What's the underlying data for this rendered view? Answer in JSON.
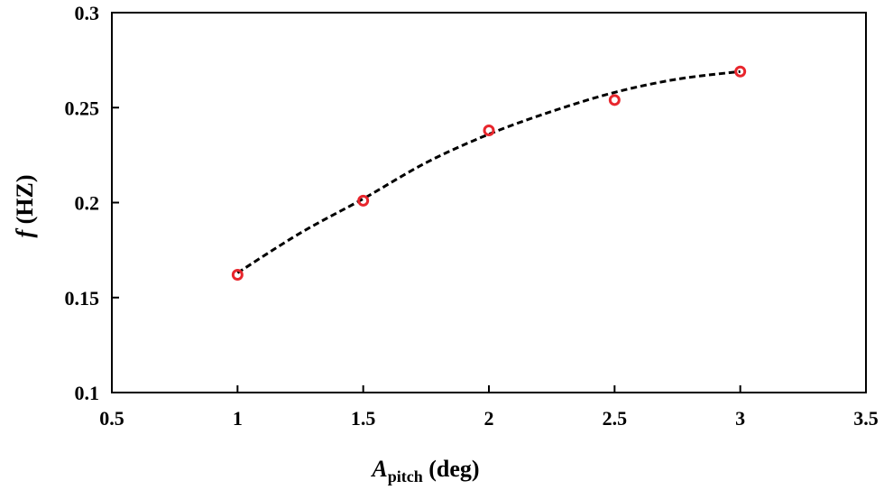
{
  "chart_data": {
    "type": "scatter",
    "xlabel": {
      "symbol": "A",
      "subscript": "pitch",
      "unit": " (deg)"
    },
    "ylabel": {
      "symbol": "f",
      "unit": " (HZ)"
    },
    "xlim": [
      0.5,
      3.5
    ],
    "ylim": [
      0.1,
      0.3
    ],
    "xticks": [
      "0.5",
      "1",
      "1.5",
      "2",
      "2.5",
      "3",
      "3.5"
    ],
    "yticks": [
      "0.1",
      "0.15",
      "0.2",
      "0.25",
      "0.3"
    ],
    "grid": false,
    "series": [
      {
        "type": "scatter",
        "marker": "open-circle",
        "color": "#e8262d",
        "x": [
          1,
          1.5,
          2,
          2.5,
          3
        ],
        "y": [
          0.162,
          0.201,
          0.238,
          0.254,
          0.269
        ]
      },
      {
        "type": "line",
        "style": "dashed",
        "color": "#000000",
        "x": [
          1,
          1.25,
          1.5,
          1.75,
          2,
          2.25,
          2.5,
          2.75,
          3
        ],
        "y": [
          0.163,
          0.184,
          0.202,
          0.221,
          0.236,
          0.248,
          0.258,
          0.265,
          0.269
        ]
      }
    ]
  }
}
